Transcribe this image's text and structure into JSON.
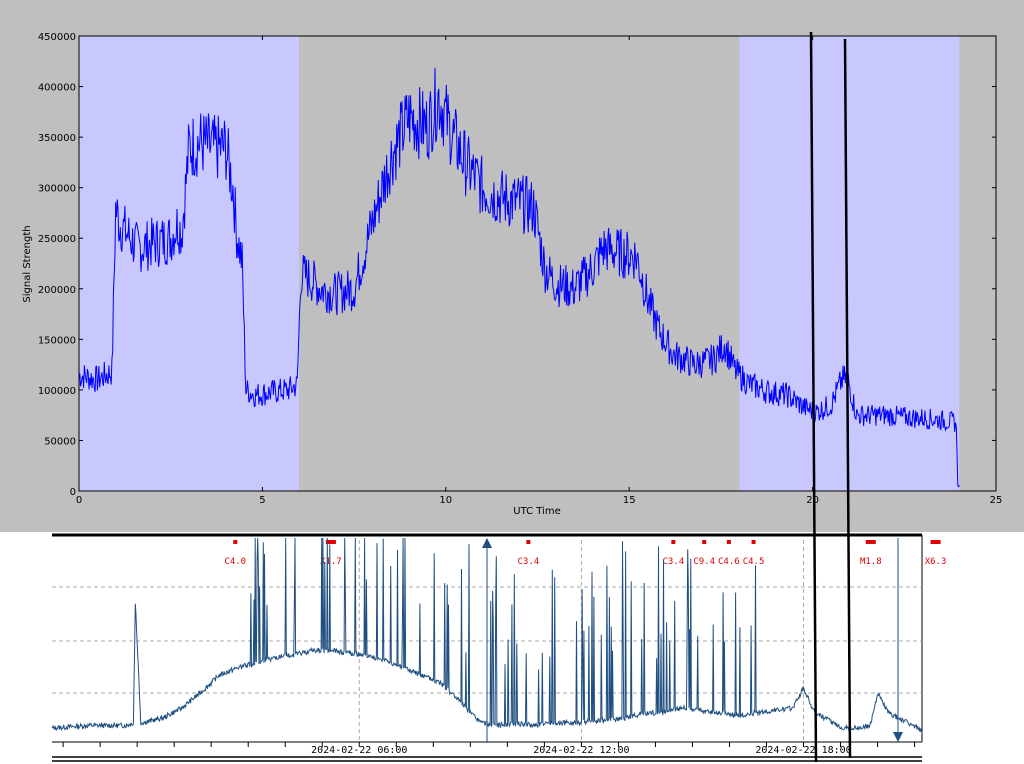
{
  "chart_data": [
    {
      "type": "line",
      "title": "",
      "xlabel": "UTC Time",
      "ylabel": "Signal Strength",
      "xlim": [
        0,
        25
      ],
      "ylim": [
        0,
        450000
      ],
      "x_ticks": [
        "0",
        "5",
        "10",
        "15",
        "20",
        "25"
      ],
      "y_ticks": [
        "0",
        "50000",
        "100000",
        "150000",
        "200000",
        "250000",
        "300000",
        "350000",
        "400000",
        "450000"
      ],
      "grid": false,
      "line_color": "#0000ff",
      "shade_color": "#c8c8ff",
      "shaded_regions": [
        [
          0,
          6
        ],
        [
          18,
          24
        ]
      ],
      "series": [
        {
          "x": [
            0,
            0.5,
            0.9,
            1.0,
            1.1,
            1.3,
            1.6,
            2.0,
            2.5,
            2.7,
            2.8,
            3.0,
            3.3,
            3.7,
            4.0,
            4.2,
            4.3,
            4.45,
            4.55,
            4.8,
            5.3,
            5.7,
            5.95,
            6.05,
            6.3,
            6.6,
            7.0,
            7.5,
            8.0,
            8.5,
            9.0,
            9.5,
            9.8,
            10.2,
            10.6,
            11.0,
            11.5,
            12.0,
            12.4,
            12.7,
            13.0,
            13.5,
            14.0,
            14.3,
            14.8,
            15.2,
            15.5,
            15.8,
            16.2,
            16.8,
            17.3,
            17.6,
            17.9,
            18.3,
            18.8,
            19.3,
            19.8,
            20.1,
            20.5,
            20.8,
            20.95,
            21.2,
            21.5,
            22.0,
            22.5,
            23.0,
            23.5,
            23.9,
            24.0
          ],
          "y": [
            115000,
            110000,
            118000,
            280000,
            265000,
            255000,
            240000,
            245000,
            250000,
            265000,
            255000,
            340000,
            345000,
            338000,
            340000,
            300000,
            255000,
            225000,
            100000,
            95000,
            98000,
            100000,
            105000,
            215000,
            210000,
            200000,
            195000,
            200000,
            265000,
            330000,
            370000,
            360000,
            390000,
            350000,
            320000,
            300000,
            290000,
            285000,
            280000,
            220000,
            205000,
            200000,
            220000,
            240000,
            235000,
            232000,
            190000,
            160000,
            135000,
            125000,
            130000,
            145000,
            118000,
            105000,
            98000,
            95000,
            82000,
            78000,
            85000,
            110000,
            112000,
            75000,
            75000,
            75000,
            73000,
            72000,
            70000,
            68000,
            5000
          ]
        }
      ]
    },
    {
      "type": "line",
      "title": "",
      "x_labels": [
        "2024-02-22 06:00",
        "2024-02-22 12:00",
        "2024-02-22 18:00"
      ],
      "line_color": "#1f4f80",
      "grid": true,
      "flare_labels": [
        "C4.0",
        "X1.7",
        "C3.4",
        "C3.4",
        "C9.4",
        "C4.6",
        "C4.5",
        "M1.8",
        "X6.3"
      ],
      "flare_times": [
        "03:45",
        "06:20",
        "11:40",
        "15:35",
        "16:25",
        "17:05",
        "17:45",
        "20:55",
        "22:40"
      ],
      "series": [
        {
          "name": "",
          "x_hours": [
            0,
            1,
            2,
            2.2,
            2.25,
            2.4,
            3,
            3.5,
            4,
            4.3,
            4.5,
            5,
            5.5,
            6,
            6.5,
            7,
            7.5,
            8,
            8.5,
            9,
            9.5,
            10,
            10.5,
            11,
            11.3,
            11.6,
            12,
            12.5,
            13,
            13.5,
            14,
            15,
            15.5,
            16,
            16.5,
            17,
            17.5,
            18,
            18.5,
            19,
            19.5,
            20,
            20.3,
            20.6,
            21,
            21.2,
            21.4,
            21.8,
            22.1,
            22.3,
            22.6,
            23,
            23.5,
            24
          ],
          "y_norm": [
            0.04,
            0.05,
            0.05,
            0.06,
            0.55,
            0.06,
            0.08,
            0.12,
            0.18,
            0.22,
            0.25,
            0.28,
            0.3,
            0.32,
            0.33,
            0.35,
            0.35,
            0.34,
            0.33,
            0.31,
            0.28,
            0.25,
            0.22,
            0.15,
            0.1,
            0.06,
            0.05,
            0.06,
            0.05,
            0.06,
            0.06,
            0.07,
            0.08,
            0.1,
            0.1,
            0.12,
            0.11,
            0.1,
            0.09,
            0.1,
            0.11,
            0.12,
            0.2,
            0.1,
            0.07,
            0.05,
            0.04,
            0.04,
            0.05,
            0.18,
            0.1,
            0.07,
            0.03,
            0.04
          ]
        }
      ]
    }
  ]
}
